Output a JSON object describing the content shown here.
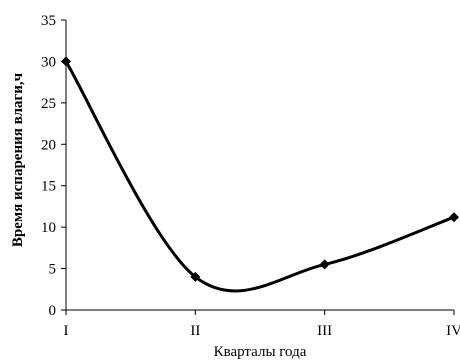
{
  "chart_data": {
    "type": "line",
    "categories": [
      "I",
      "II",
      "III",
      "IV"
    ],
    "values": [
      30,
      4,
      5.5,
      11.2
    ],
    "ylim": [
      0,
      35
    ],
    "yticks": [
      "0",
      "5",
      "10",
      "15",
      "20",
      "25",
      "30",
      "35"
    ],
    "xlabel": "Кварталы года",
    "ylabel": "Время испарения влаги,ч",
    "smooth": true,
    "grid": false,
    "marker": "diamond",
    "line_color": "#000000"
  }
}
